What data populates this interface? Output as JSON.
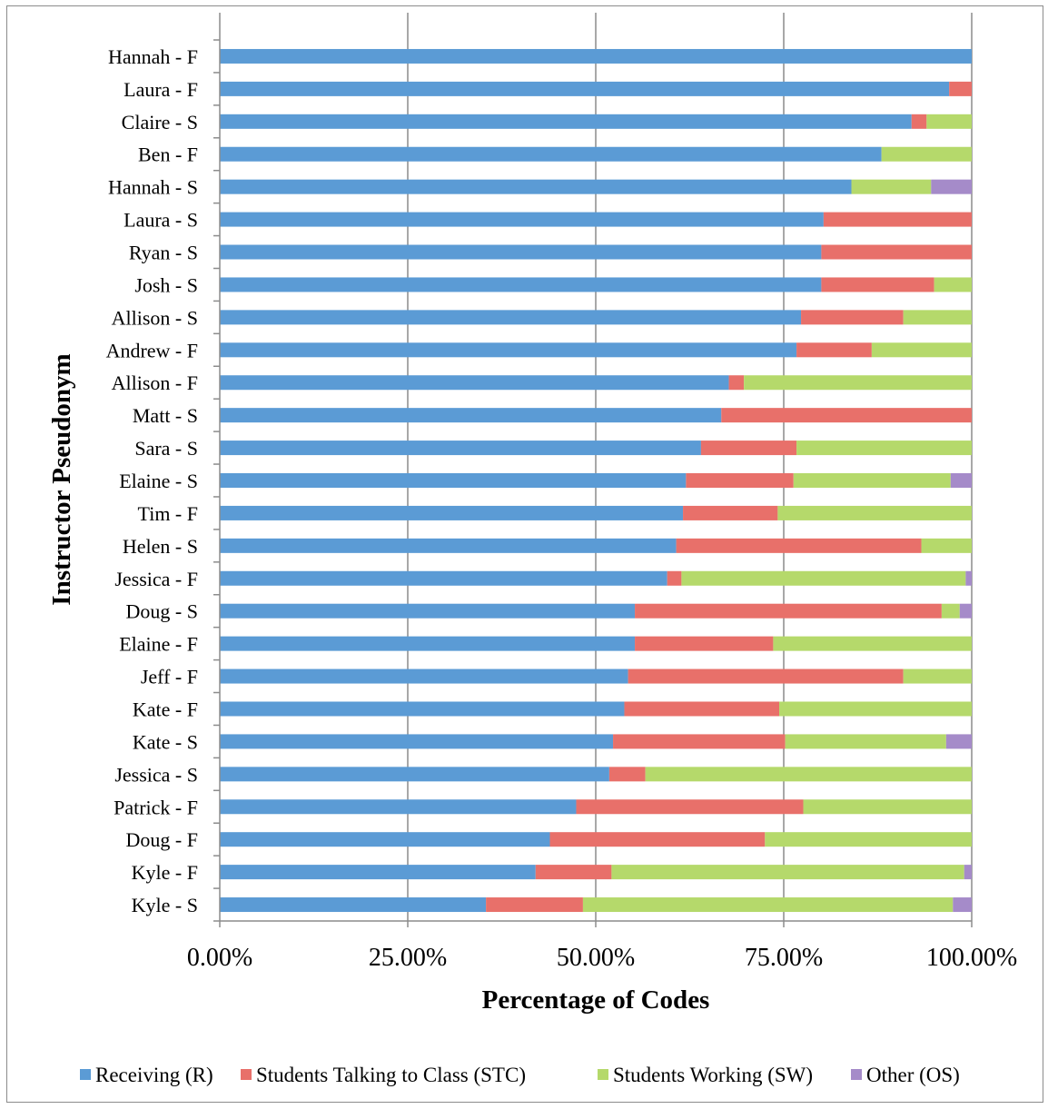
{
  "chart_data": {
    "type": "bar",
    "orientation": "horizontal",
    "stacked": true,
    "xlabel": "Percentage of Codes",
    "ylabel": "Instructor Pseudonym",
    "xlim": [
      0,
      100
    ],
    "xticks": [
      0,
      25,
      50,
      75,
      100
    ],
    "xtick_labels": [
      "0.00%",
      "25.00%",
      "50.00%",
      "75.00%",
      "100.00%"
    ],
    "grid": "vertical",
    "legend_position": "bottom",
    "categories": [
      "Hannah - F",
      "Laura - F",
      "Claire - S",
      "Ben - F",
      "Hannah - S",
      "Laura - S",
      "Ryan - S",
      "Josh - S",
      "Allison - S",
      "Andrew - F",
      "Allison - F",
      "Matt - S",
      "Sara - S",
      "Elaine - S",
      "Tim - F",
      "Helen - S",
      "Jessica - F",
      "Doug - S",
      "Elaine - F",
      "Jeff - F",
      "Kate - F",
      "Kate - S",
      "Jessica - S",
      "Patrick - F",
      "Doug - F",
      "Kyle - F",
      "Kyle - S"
    ],
    "series": [
      {
        "name": "Receiving (R)",
        "color": "#5b9bd5",
        "values": [
          100,
          97,
          92,
          88,
          84,
          80.3,
          80,
          80,
          77.3,
          76.7,
          67.7,
          66.7,
          64,
          62,
          61.6,
          60.7,
          59.5,
          55.2,
          55.2,
          54.3,
          53.8,
          52.3,
          51.8,
          47.4,
          43.9,
          42,
          35.4
        ]
      },
      {
        "name": "Students Talking to Class (STC)",
        "color": "#e8706a",
        "values": [
          0,
          3,
          2,
          0,
          0,
          19.7,
          20,
          15,
          13.6,
          10,
          2,
          33.3,
          12.7,
          14.3,
          12.6,
          32.6,
          1.9,
          40.8,
          18.4,
          36.6,
          20.6,
          22.9,
          4.8,
          30.2,
          28.6,
          10.1,
          12.9
        ]
      },
      {
        "name": "Students Working (SW)",
        "color": "#b5d96b",
        "values": [
          0,
          0,
          6,
          12,
          10.6,
          0,
          0,
          5,
          9.1,
          13.3,
          30.3,
          0,
          23.3,
          20.9,
          25.8,
          6.7,
          37.8,
          2.4,
          26.4,
          9.1,
          25.6,
          21.4,
          43.4,
          22.4,
          27.5,
          46.9,
          49.2
        ]
      },
      {
        "name": "Other (OS)",
        "color": "#a58bc9",
        "values": [
          0,
          0,
          0,
          0,
          5.4,
          0,
          0,
          0,
          0,
          0,
          0,
          0,
          0,
          2.8,
          0,
          0,
          0.8,
          1.6,
          0,
          0,
          0,
          3.4,
          0,
          0,
          0,
          1,
          2.5
        ]
      }
    ]
  }
}
